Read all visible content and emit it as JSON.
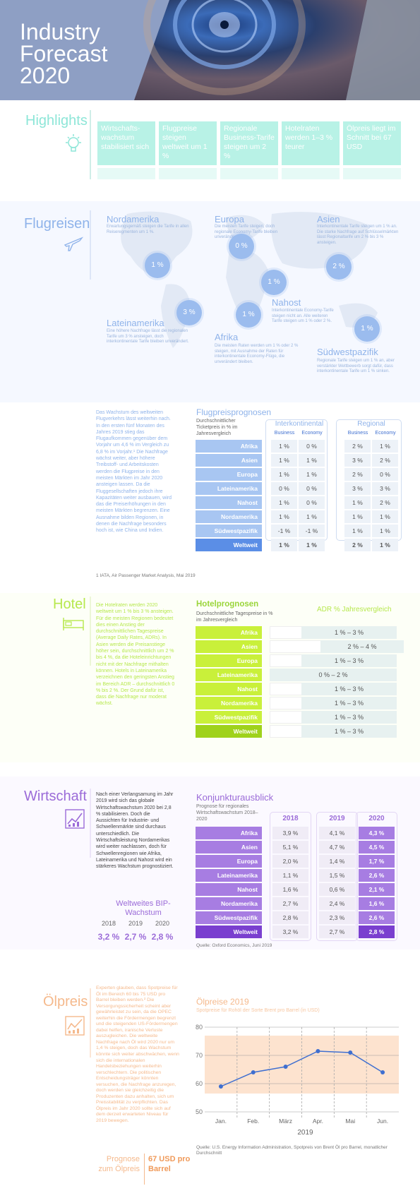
{
  "hero": {
    "title": "Industry\nForecast\n2020"
  },
  "highlights": {
    "title": "Highlights",
    "items": [
      "Wirtschafts-wachstum stabilisiert sich",
      "Flugpreise steigen weltweit um 1 %",
      "Regionale Business-Tarife steigen um 2 %",
      "Hotelraten werden 1–3 % teurer",
      "Ölpreis liegt im Schnitt bei 67 USD"
    ]
  },
  "flugreisen": {
    "title": "Flugreisen",
    "regions": [
      {
        "name": "Nordamerika",
        "text": "Erwartungsgemäß steigen die Tarife in allen Reiseregmenten um 1 %.",
        "value": "1 %"
      },
      {
        "name": "Europa",
        "text": "Die meisten Tarife steigen, doch regionale Economy-Tarife bleiben unverändert.",
        "value": "0 %"
      },
      {
        "name": "Asien",
        "text": "Interkontinentale Tarife steigen um 1 % an. Die starke Nachfrage auf Schlüsselmärkten lässt Regionaltarife um 2 % bis 3 % ansteigen.",
        "value": "2 %"
      },
      {
        "name": "Lateinamerika",
        "text": "Eine höhere Nachfrage lässt die regionalen Tarife um 3 % ansteigen, doch interkontinentale Tarife bleiben unverändert.",
        "value": "3 %"
      },
      {
        "name": "Afrika",
        "text": "Die meisten Raten werden um 1 % oder 2 % steigen, mit Ausnahme der Raten für interkontinentale Economy-Flüge, die unverändert bleiben.",
        "value": "1 %"
      },
      {
        "name": "Nahost",
        "text": "Interkontinentale Economy-Tarife steigen nicht an. Alle weiteren Tarife steigen um 1 % oder 2 %.",
        "value": "1 %"
      },
      {
        "name": "Südwestpazifik",
        "text": "Regionale Tarife steigen um 1 % an, aber verstärkter Wettbewerb sorgt dafür, dass interkontinentale Tarife um 1 % sinken.",
        "value": "1 %"
      }
    ],
    "body": "Das Wachstum des weltweiten Flugverkehrs lässt weiterhin nach. In den ersten fünf Monaten des Jahres 2019 stieg das Flugaufkommen gegenüber dem Vorjahr um 4,6 % im Vergleich zu 6,8 % im Vorjahr.¹ Die Nachfrage wächst weiter, aber höhere Treibstoff- und Arbeitskosten werden die Flugpreise in den meisten Märkten im Jahr 2020 ansteigen lassen. Da die Fluggesellschaften jedoch ihre Kapazitäten weiter ausbauen, wird das die Preiserhöhungen in den meisten Märkten begrenzen. Eine Ausnahme bilden Regionen, in denen die Nachfrage besonders hoch ist, wie China und Indien.",
    "footnote": "1 IATA, Air Passenger Market Analysis, Mai 2019",
    "table": {
      "title": "Flugpreisprognosen",
      "subtitle": "Durchschnittlicher Ticketpreis in % im Jahresvergleich",
      "groups": [
        "Interkontinental",
        "Regional"
      ],
      "sub": [
        "Business",
        "Economy",
        "Business",
        "Economy"
      ],
      "rows": [
        [
          "Afrika",
          "1 %",
          "0 %",
          "2 %",
          "1 %"
        ],
        [
          "Asien",
          "1 %",
          "1 %",
          "3 %",
          "2 %"
        ],
        [
          "Europa",
          "1 %",
          "1 %",
          "2 %",
          "0 %"
        ],
        [
          "Lateinamerika",
          "0 %",
          "0 %",
          "3 %",
          "3 %"
        ],
        [
          "Nahost",
          "1 %",
          "0 %",
          "1 %",
          "2 %"
        ],
        [
          "Nordamerika",
          "1 %",
          "1 %",
          "1 %",
          "1 %"
        ],
        [
          "Südwestpazifik",
          "-1 %",
          "-1 %",
          "1 %",
          "1 %"
        ],
        [
          "Weltweit",
          "1 %",
          "1 %",
          "2 %",
          "1 %"
        ]
      ]
    }
  },
  "hotel": {
    "title": "Hotel",
    "body": "Die Hotelraten werden 2020 weltweit um 1 % bis 3 % ansteigen. Für die meisten Regionen bedeutet dies einen Anstieg der durchschnittlichen Tagespreise (Average Daily Rates, ADRs). In Asien werden die Preisanstiege höher sein, durchschnittlich um 2 % bis 4 %, da die Hoteleinrichtungen nicht mit der Nachfrage mithalten können. Hotels in Lateinamerika verzeichnen den geringsten Anstieg im Bereich ADR – durchschnittlich 0 % bis 2 %. Der Grund dafür ist, dass die Nachfrage nur moderat wächst.",
    "table": {
      "title": "Hotelprognosen",
      "subtitle": "Durchschnittliche Tagespreise in % im Jahresvergleich",
      "colhead": "ADR % Jahresvergleich",
      "rows": [
        [
          "Afrika",
          "1 % – 3 %",
          0.25
        ],
        [
          "Asien",
          "2 % – 4 %",
          0.4
        ],
        [
          "Europa",
          "1 % – 3 %",
          0.25
        ],
        [
          "Lateinamerika",
          "0 % – 2 %",
          0.0
        ],
        [
          "Nahost",
          "1 % – 3 %",
          0.25
        ],
        [
          "Nordamerika",
          "1 % – 3 %",
          0.25
        ],
        [
          "Südwestpazifik",
          "1 % – 3 %",
          0.25
        ],
        [
          "Weltweit",
          "1 % – 3 %",
          0.25
        ]
      ]
    }
  },
  "wirtschaft": {
    "title": "Wirtschaft",
    "body": "Nach einer Verlangsamung im Jahr 2019 wird sich das globale Wirtschaftswachstum 2020 bei 2,8 % stabilisieren. Doch die Aussichten für Industrie- und Schwellenmärkte sind durchaus unterschiedlich. Die Wirtschaftsleistung Nordamerikas wird weiter nachlassen, doch für Schwellenregionen wie Afrika, Lateinamerika und Nahost wird ein stärkeres Wachstum prognostiziert.",
    "bip": {
      "title": "Weltweites BIP-Wachstum",
      "years": [
        "2018",
        "2019",
        "2020"
      ],
      "values": [
        "3,2 %",
        "2,7 %",
        "2,8 %"
      ]
    },
    "table": {
      "title": "Konjunkturausblick",
      "subtitle": "Prognose für regionales Wirtschaftswachstum 2018–2020",
      "years": [
        "2018",
        "2019",
        "2020"
      ],
      "rows": [
        [
          "Afrika",
          "3,9 %",
          "4,1 %",
          "4,3 %"
        ],
        [
          "Asien",
          "5,1 %",
          "4,7 %",
          "4,5 %"
        ],
        [
          "Europa",
          "2,0 %",
          "1,4 %",
          "1,7 %"
        ],
        [
          "Lateinamerika",
          "1,1 %",
          "1,5 %",
          "2,6 %"
        ],
        [
          "Nahost",
          "1,6 %",
          "0,6 %",
          "2,1 %"
        ],
        [
          "Nordamerika",
          "2,7 %",
          "2,4 %",
          "1,6 %"
        ],
        [
          "Südwestpazifik",
          "2,8 %",
          "2,3 %",
          "2,6 %"
        ],
        [
          "Weltweit",
          "3,2 %",
          "2,7 %",
          "2,8 %"
        ]
      ]
    },
    "source": "Quelle: Oxford Economics, Juni 2019"
  },
  "oel": {
    "title": "Ölpreis",
    "body": "Experten glauben, dass Spotpreise für Öl im Bereich 60 bis 75 USD pro Barrel bleiben werden.² Die Versorgungssicherheit scheint aber gewährleistet zu sein, da die OPEC weiterhin die Fördermengen begrenzt und die steigenden US-Fördermengen dabei helfen, iranische Verluste auszugleichen. Die weltweite Nachfrage nach Öl wird 2020 nur um 1,4 % steigen, doch das Wachstum könnte sich weiter abschwächen, wenn sich die internationalen Handelsbeziehungen weiterhin verschlechtern. Die politischen Entscheidungsträger könnten versuchen, die Nachfrage anzuregen, doch werden sie gleichzeitig die Produzenten dazu anhalten, sich um Preisstabilität zu verpflichten. Das Ölpreis im Jahr 2020 sollte sich auf dem derzeit erwarteten Niveau für 2019 bewegen.",
    "prognose_label": "Prognose zum Ölpreis",
    "prognose_value": "67 USD pro Barrel",
    "source": "Quelle: U.S. Energy Information Administration, Spotpreis von Brent Öl pro Barrel, monatlicher Durchschnitt"
  },
  "chart_data": {
    "type": "line",
    "title": "Ölpreise 2019",
    "subtitle": "Spotpreise für Rohöl der Sorte Brent pro Barrel (in USD)",
    "xlabel": "2019",
    "categories": [
      "Jan.",
      "Feb.",
      "März",
      "Apr.",
      "Mai",
      "Jun."
    ],
    "series": [
      {
        "values": [
          59,
          64,
          66,
          71.5,
          71,
          64
        ]
      }
    ],
    "ylim": [
      50,
      80
    ],
    "yticks": [
      50,
      60,
      70,
      80
    ],
    "band": [
      60,
      75
    ],
    "color": "#3f6fd0"
  }
}
